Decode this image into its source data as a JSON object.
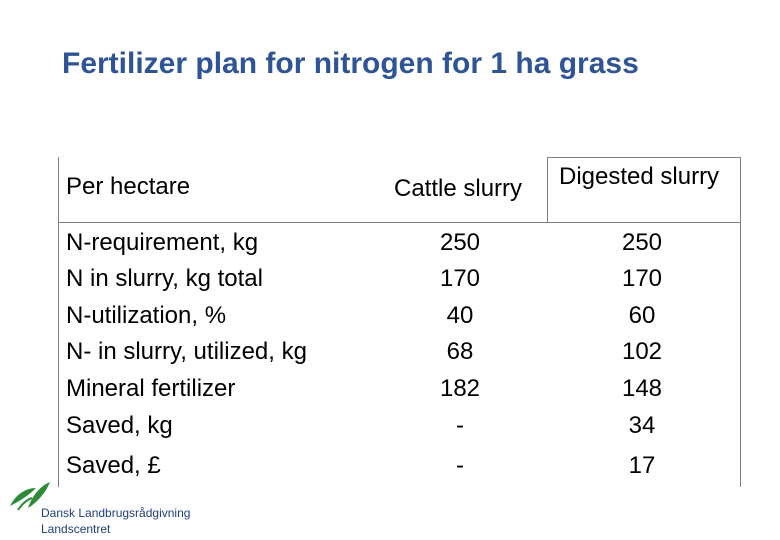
{
  "title": "Fertilizer plan for nitrogen for 1 ha grass",
  "table": {
    "headers": [
      "Per hectare",
      "Cattle slurry",
      "Digested slurry"
    ],
    "rows": [
      {
        "label": "N-requirement, kg",
        "cattle": "250",
        "digested": "250"
      },
      {
        "label": "N in slurry, kg total",
        "cattle": "170",
        "digested": "170"
      },
      {
        "label": "N-utilization, %",
        "cattle": "40",
        "digested": "60"
      },
      {
        "label": "N- in slurry, utilized, kg",
        "cattle": "68",
        "digested": "102"
      },
      {
        "label": "Mineral fertilizer",
        "cattle": "182",
        "digested": "148"
      },
      {
        "label": "Saved, kg",
        "cattle": "-",
        "digested": "34"
      },
      {
        "label": "Saved, £",
        "cattle": "-",
        "digested": "17"
      }
    ]
  },
  "logo": {
    "line1": "Dansk Landbrugsrådgivning",
    "line2": "Landscentret",
    "icon": "leaf-logo-icon",
    "color": "#2e8b3a"
  },
  "colors": {
    "title": "#2f5496",
    "border": "#7f7f7f"
  }
}
